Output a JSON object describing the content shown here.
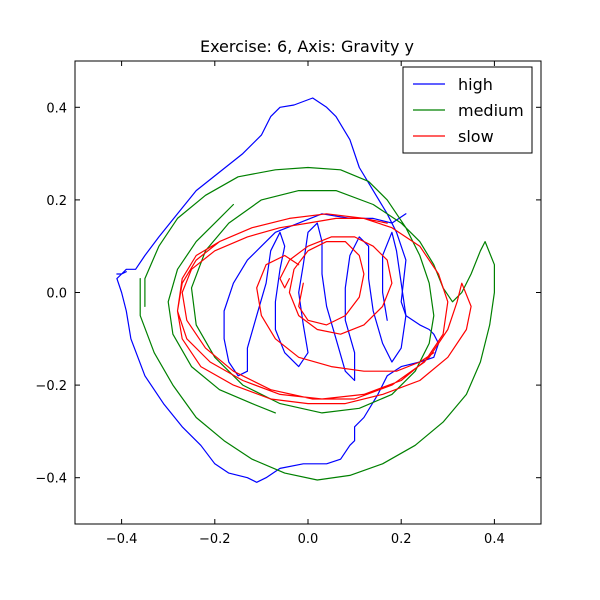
{
  "chart_data": {
    "type": "line",
    "title": "Exercise: 6, Axis: Gravity y",
    "xlabel": "",
    "ylabel": "",
    "xlim": [
      -0.5,
      0.5
    ],
    "ylim": [
      -0.5,
      0.5
    ],
    "x_ticks": [
      -0.4,
      -0.2,
      0.0,
      0.2,
      0.4
    ],
    "y_ticks": [
      -0.4,
      -0.2,
      0.0,
      0.2,
      0.4
    ],
    "x_tick_labels": [
      "−0.4",
      "−0.2",
      "0.0",
      "0.2",
      "0.4"
    ],
    "y_tick_labels": [
      "−0.4",
      "−0.2",
      "0.0",
      "0.2",
      "0.4"
    ],
    "grid": false,
    "legend_position": "top-right",
    "series": [
      {
        "name": "high",
        "color": "#0000ff",
        "points": [
          [
            -0.41,
            0.04
          ],
          [
            -0.4,
            0.04
          ],
          [
            -0.39,
            0.05
          ],
          [
            -0.37,
            0.05
          ],
          [
            -0.35,
            0.08
          ],
          [
            -0.32,
            0.12
          ],
          [
            -0.28,
            0.17
          ],
          [
            -0.24,
            0.22
          ],
          [
            -0.19,
            0.26
          ],
          [
            -0.14,
            0.3
          ],
          [
            -0.1,
            0.34
          ],
          [
            -0.08,
            0.38
          ],
          [
            -0.06,
            0.4
          ],
          [
            -0.03,
            0.405
          ],
          [
            0.01,
            0.42
          ],
          [
            0.04,
            0.4
          ],
          [
            0.06,
            0.38
          ],
          [
            0.09,
            0.33
          ],
          [
            0.11,
            0.27
          ],
          [
            0.14,
            0.22
          ],
          [
            0.17,
            0.17
          ],
          [
            0.19,
            0.13
          ],
          [
            0.21,
            0.07
          ],
          [
            0.2,
            -0.02
          ],
          [
            0.21,
            -0.05
          ],
          [
            0.24,
            -0.07
          ],
          [
            0.26,
            -0.08
          ],
          [
            0.27,
            -0.09
          ],
          [
            0.28,
            -0.11
          ],
          [
            0.27,
            -0.14
          ],
          [
            0.24,
            -0.15
          ],
          [
            0.2,
            -0.16
          ],
          [
            0.17,
            -0.18
          ],
          [
            0.15,
            -0.22
          ],
          [
            0.12,
            -0.27
          ],
          [
            0.1,
            -0.29
          ],
          [
            0.1,
            -0.32
          ],
          [
            0.09,
            -0.33
          ],
          [
            0.07,
            -0.36
          ],
          [
            0.04,
            -0.37
          ],
          [
            -0.01,
            -0.37
          ],
          [
            -0.06,
            -0.38
          ],
          [
            -0.09,
            -0.4
          ],
          [
            -0.11,
            -0.41
          ],
          [
            -0.13,
            -0.4
          ],
          [
            -0.17,
            -0.39
          ],
          [
            -0.2,
            -0.37
          ],
          [
            -0.23,
            -0.33
          ],
          [
            -0.27,
            -0.29
          ],
          [
            -0.31,
            -0.24
          ],
          [
            -0.35,
            -0.18
          ],
          [
            -0.38,
            -0.1
          ],
          [
            -0.39,
            -0.04
          ],
          [
            -0.4,
            0.0
          ],
          [
            -0.41,
            0.03
          ],
          [
            -0.4,
            0.04
          ],
          [
            -0.39,
            0.045
          ]
        ]
      },
      {
        "name": "high",
        "color": "#0000ff",
        "points": [
          [
            0.21,
            0.17
          ],
          [
            0.18,
            0.15
          ],
          [
            0.14,
            0.16
          ],
          [
            0.09,
            0.16
          ],
          [
            0.03,
            0.17
          ],
          [
            -0.02,
            0.15
          ],
          [
            -0.07,
            0.13
          ],
          [
            -0.1,
            0.1
          ],
          [
            -0.13,
            0.07
          ],
          [
            -0.16,
            0.02
          ],
          [
            -0.18,
            -0.04
          ],
          [
            -0.18,
            -0.1
          ],
          [
            -0.17,
            -0.15
          ],
          [
            -0.15,
            -0.18
          ],
          [
            -0.13,
            -0.17
          ],
          [
            -0.13,
            -0.12
          ],
          [
            -0.11,
            -0.05
          ],
          [
            -0.09,
            0.02
          ],
          [
            -0.08,
            0.09
          ],
          [
            -0.06,
            0.13
          ],
          [
            -0.05,
            0.1
          ],
          [
            -0.06,
            0.05
          ],
          [
            -0.07,
            -0.02
          ],
          [
            -0.07,
            -0.08
          ],
          [
            -0.05,
            -0.13
          ],
          [
            -0.02,
            -0.16
          ],
          [
            0.0,
            -0.13
          ],
          [
            -0.01,
            -0.07
          ],
          [
            -0.02,
            0.0
          ],
          [
            -0.01,
            0.06
          ],
          [
            0.0,
            0.13
          ],
          [
            0.02,
            0.15
          ],
          [
            0.03,
            0.11
          ],
          [
            0.03,
            0.04
          ],
          [
            0.04,
            -0.03
          ],
          [
            0.06,
            -0.1
          ],
          [
            0.08,
            -0.17
          ],
          [
            0.1,
            -0.19
          ],
          [
            0.1,
            -0.13
          ],
          [
            0.08,
            -0.06
          ],
          [
            0.08,
            0.01
          ],
          [
            0.09,
            0.08
          ],
          [
            0.11,
            0.12
          ],
          [
            0.13,
            0.1
          ],
          [
            0.13,
            0.03
          ],
          [
            0.14,
            -0.04
          ],
          [
            0.16,
            -0.11
          ],
          [
            0.18,
            -0.15
          ],
          [
            0.2,
            -0.12
          ],
          [
            0.21,
            -0.05
          ],
          [
            0.2,
            0.02
          ],
          [
            0.19,
            0.09
          ],
          [
            0.18,
            0.13
          ],
          [
            0.16,
            0.08
          ],
          [
            0.16,
            0.0
          ],
          [
            0.17,
            -0.06
          ]
        ]
      },
      {
        "name": "medium",
        "color": "#008000",
        "points": [
          [
            -0.16,
            0.19
          ],
          [
            -0.19,
            0.16
          ],
          [
            -0.24,
            0.11
          ],
          [
            -0.28,
            0.05
          ],
          [
            -0.3,
            -0.02
          ],
          [
            -0.29,
            -0.09
          ],
          [
            -0.25,
            -0.16
          ],
          [
            -0.19,
            -0.21
          ],
          [
            -0.12,
            -0.24
          ],
          [
            -0.07,
            -0.26
          ]
        ]
      },
      {
        "name": "medium",
        "color": "#008000",
        "points": [
          [
            -0.36,
            0.03
          ],
          [
            -0.36,
            -0.05
          ],
          [
            -0.33,
            -0.13
          ],
          [
            -0.29,
            -0.2
          ],
          [
            -0.24,
            -0.27
          ],
          [
            -0.18,
            -0.32
          ],
          [
            -0.12,
            -0.36
          ],
          [
            -0.05,
            -0.39
          ],
          [
            0.02,
            -0.405
          ],
          [
            0.09,
            -0.395
          ],
          [
            0.16,
            -0.37
          ],
          [
            0.23,
            -0.33
          ],
          [
            0.29,
            -0.28
          ],
          [
            0.34,
            -0.22
          ],
          [
            0.37,
            -0.15
          ],
          [
            0.39,
            -0.07
          ],
          [
            0.4,
            0.0
          ],
          [
            0.4,
            0.06
          ],
          [
            0.38,
            0.11
          ],
          [
            0.37,
            0.09
          ],
          [
            0.35,
            0.04
          ],
          [
            0.33,
            0.0
          ],
          [
            0.31,
            -0.02
          ],
          [
            0.29,
            0.01
          ],
          [
            0.27,
            0.06
          ],
          [
            0.24,
            0.11
          ],
          [
            0.2,
            0.15
          ],
          [
            0.14,
            0.19
          ],
          [
            0.06,
            0.22
          ],
          [
            -0.02,
            0.22
          ],
          [
            -0.1,
            0.2
          ],
          [
            -0.17,
            0.15
          ],
          [
            -0.22,
            0.09
          ],
          [
            -0.25,
            0.01
          ],
          [
            -0.24,
            -0.07
          ],
          [
            -0.2,
            -0.14
          ],
          [
            -0.14,
            -0.2
          ],
          [
            -0.06,
            -0.24
          ],
          [
            0.03,
            -0.26
          ],
          [
            0.11,
            -0.25
          ],
          [
            0.18,
            -0.22
          ],
          [
            0.23,
            -0.17
          ],
          [
            0.26,
            -0.11
          ],
          [
            0.27,
            -0.05
          ],
          [
            0.26,
            0.02
          ],
          [
            0.24,
            0.08
          ],
          [
            0.21,
            0.14
          ],
          [
            0.17,
            0.2
          ],
          [
            0.13,
            0.24
          ],
          [
            0.07,
            0.265
          ],
          [
            0.0,
            0.27
          ],
          [
            -0.07,
            0.265
          ],
          [
            -0.15,
            0.25
          ],
          [
            -0.22,
            0.21
          ],
          [
            -0.28,
            0.16
          ],
          [
            -0.32,
            0.1
          ],
          [
            -0.35,
            0.03
          ],
          [
            -0.35,
            -0.03
          ]
        ]
      },
      {
        "name": "slow",
        "color": "#ff0000",
        "points": [
          [
            0.17,
            0.15
          ],
          [
            0.12,
            0.16
          ],
          [
            0.06,
            0.16
          ],
          [
            0.0,
            0.15
          ],
          [
            -0.06,
            0.14
          ],
          [
            -0.13,
            0.12
          ],
          [
            -0.2,
            0.09
          ],
          [
            -0.25,
            0.05
          ],
          [
            -0.27,
            0.0
          ],
          [
            -0.26,
            -0.06
          ],
          [
            -0.22,
            -0.12
          ],
          [
            -0.16,
            -0.17
          ],
          [
            -0.08,
            -0.21
          ],
          [
            0.01,
            -0.23
          ],
          [
            0.1,
            -0.23
          ],
          [
            0.18,
            -0.2
          ],
          [
            0.25,
            -0.15
          ],
          [
            0.29,
            -0.09
          ],
          [
            0.3,
            -0.02
          ],
          [
            0.28,
            0.04
          ],
          [
            0.24,
            0.1
          ],
          [
            0.18,
            0.14
          ],
          [
            0.12,
            0.16
          ],
          [
            0.04,
            0.17
          ],
          [
            -0.04,
            0.16
          ],
          [
            -0.12,
            0.14
          ],
          [
            -0.19,
            0.11
          ],
          [
            -0.24,
            0.07
          ],
          [
            -0.27,
            0.02
          ],
          [
            -0.28,
            -0.04
          ],
          [
            -0.26,
            -0.1
          ],
          [
            -0.21,
            -0.15
          ],
          [
            -0.14,
            -0.19
          ],
          [
            -0.06,
            -0.22
          ],
          [
            0.03,
            -0.23
          ],
          [
            0.12,
            -0.22
          ],
          [
            0.2,
            -0.19
          ],
          [
            0.26,
            -0.14
          ],
          [
            0.3,
            -0.08
          ],
          [
            0.32,
            -0.02
          ],
          [
            0.33,
            0.02
          ],
          [
            0.35,
            -0.03
          ],
          [
            0.34,
            -0.08
          ],
          [
            0.3,
            -0.14
          ],
          [
            0.24,
            -0.19
          ],
          [
            0.16,
            -0.22
          ],
          [
            0.08,
            -0.24
          ],
          [
            0.0,
            -0.24
          ],
          [
            -0.08,
            -0.23
          ],
          [
            -0.16,
            -0.2
          ],
          [
            -0.23,
            -0.16
          ],
          [
            -0.27,
            -0.1
          ],
          [
            -0.28,
            -0.04
          ],
          [
            -0.27,
            0.03
          ],
          [
            -0.24,
            0.08
          ],
          [
            -0.19,
            0.11
          ]
        ]
      },
      {
        "name": "slow",
        "color": "#ff0000",
        "points": [
          [
            -0.01,
            0.02
          ],
          [
            -0.02,
            -0.03
          ],
          [
            0.0,
            -0.06
          ],
          [
            0.04,
            -0.07
          ],
          [
            0.08,
            -0.05
          ],
          [
            0.11,
            -0.01
          ],
          [
            0.12,
            0.04
          ],
          [
            0.11,
            0.08
          ],
          [
            0.08,
            0.11
          ],
          [
            0.04,
            0.11
          ],
          [
            0.0,
            0.09
          ],
          [
            -0.03,
            0.05
          ],
          [
            -0.04,
            0.0
          ],
          [
            -0.02,
            -0.05
          ],
          [
            0.02,
            -0.08
          ],
          [
            0.07,
            -0.09
          ],
          [
            0.12,
            -0.07
          ],
          [
            0.16,
            -0.03
          ],
          [
            0.18,
            0.02
          ],
          [
            0.17,
            0.07
          ],
          [
            0.14,
            0.1
          ],
          [
            0.1,
            0.12
          ],
          [
            0.05,
            0.12
          ],
          [
            0.0,
            0.1
          ],
          [
            -0.04,
            0.07
          ],
          [
            -0.06,
            0.03
          ],
          [
            -0.05,
            0.01
          ],
          [
            -0.04,
            0.03
          ]
        ]
      },
      {
        "name": "slow",
        "color": "#ff0000",
        "points": [
          [
            0.27,
            -0.13
          ],
          [
            0.24,
            -0.15
          ],
          [
            0.19,
            -0.17
          ],
          [
            0.12,
            -0.17
          ],
          [
            0.05,
            -0.16
          ],
          [
            -0.02,
            -0.14
          ],
          [
            -0.07,
            -0.1
          ],
          [
            -0.1,
            -0.05
          ],
          [
            -0.11,
            0.01
          ],
          [
            -0.09,
            0.06
          ],
          [
            -0.05,
            0.08
          ],
          [
            -0.02,
            0.06
          ]
        ]
      }
    ],
    "legend": [
      {
        "name": "high",
        "color": "#0000ff"
      },
      {
        "name": "medium",
        "color": "#008000"
      },
      {
        "name": "slow",
        "color": "#ff0000"
      }
    ]
  }
}
